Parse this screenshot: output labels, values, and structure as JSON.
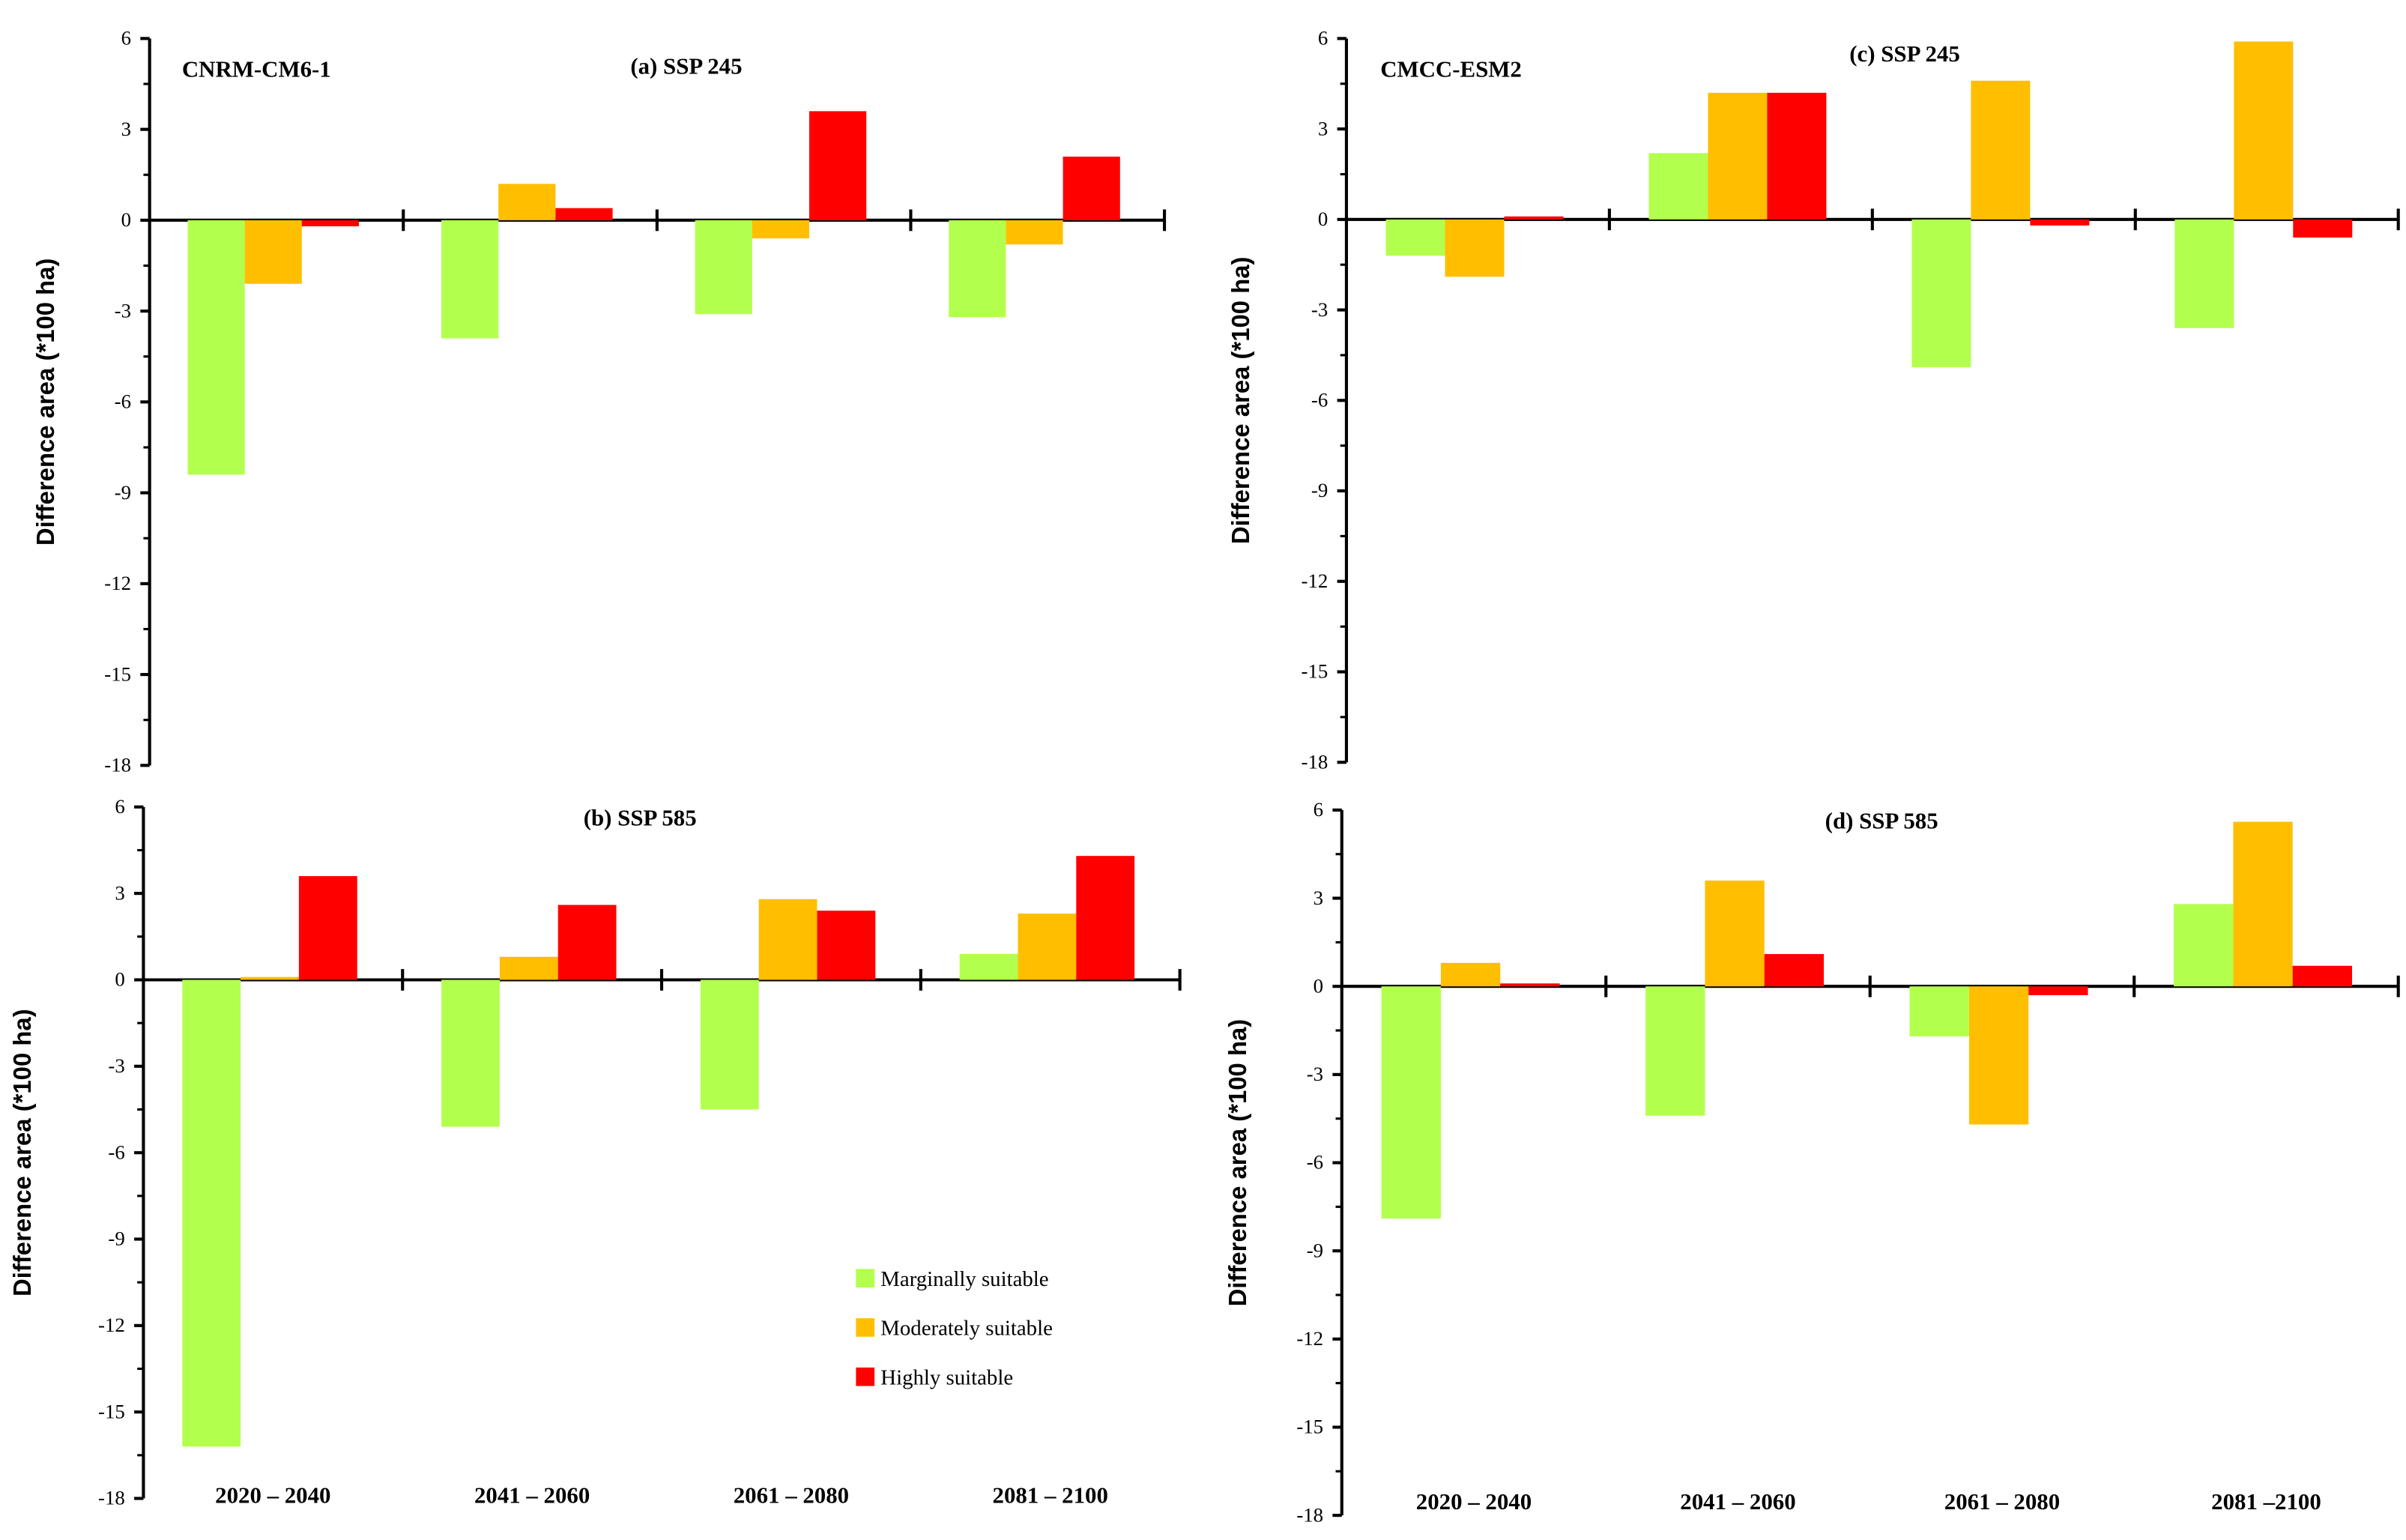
{
  "chart_data": [
    {
      "type": "bar",
      "model": "CNRM-CM6-1",
      "title": "(a)  SSP 245",
      "ylabel": "Difference area (*100 ha)",
      "ylim": [
        -18,
        6
      ],
      "yticks": [
        "6",
        "3",
        "0",
        "-3",
        "-6",
        "-9",
        "-12",
        "-15",
        "-18"
      ],
      "categories": [
        "2020 – 2040",
        "2041 – 2060",
        "2061 – 2080",
        "2081 – 2100"
      ],
      "show_categories": false,
      "series": [
        {
          "name": "Marginally suitable",
          "values": [
            -8.4,
            -3.9,
            -3.1,
            -3.2
          ]
        },
        {
          "name": "Moderately suitable",
          "values": [
            -2.1,
            1.2,
            -0.6,
            -0.8
          ]
        },
        {
          "name": "Highly suitable",
          "values": [
            -0.2,
            0.4,
            3.6,
            2.1
          ]
        }
      ]
    },
    {
      "type": "bar",
      "model": "",
      "title": "(b) SSP 585",
      "ylabel": "Difference area (*100 ha)",
      "ylim": [
        -18,
        6
      ],
      "yticks": [
        "6",
        "3",
        "0",
        "-3",
        "-6",
        "-9",
        "-12",
        "-15",
        "-18"
      ],
      "categories": [
        "2020 – 2040",
        "2041 – 2060",
        "2061 – 2080",
        "2081 – 2100"
      ],
      "show_categories": true,
      "series": [
        {
          "name": "Marginally suitable",
          "values": [
            -16.2,
            -5.1,
            -4.5,
            0.9
          ]
        },
        {
          "name": "Moderately suitable",
          "values": [
            0.1,
            0.8,
            2.8,
            2.3
          ]
        },
        {
          "name": "Highly suitable",
          "values": [
            3.6,
            2.6,
            2.4,
            4.3
          ]
        }
      ]
    },
    {
      "type": "bar",
      "model": "CMCC-ESM2",
      "title": "(c) SSP 245",
      "ylabel": "Difference area (*100 ha)",
      "ylim": [
        -18,
        6
      ],
      "yticks": [
        "6",
        "3",
        "0",
        "-3",
        "-6",
        "-9",
        "-12",
        "-15",
        "-18"
      ],
      "categories": [
        "2020 – 2040",
        "2041 – 2060",
        "2061 – 2080",
        "2081 – 2100"
      ],
      "show_categories": false,
      "series": [
        {
          "name": "Marginally suitable",
          "values": [
            -1.2,
            2.2,
            -4.9,
            -3.6
          ]
        },
        {
          "name": "Moderately suitable",
          "values": [
            -1.9,
            4.2,
            4.6,
            5.9
          ]
        },
        {
          "name": "Highly suitable",
          "values": [
            0.1,
            4.2,
            -0.2,
            -0.6
          ]
        }
      ]
    },
    {
      "type": "bar",
      "model": "",
      "title": "(d)  SSP 585",
      "ylabel": "Difference area (*100 ha)",
      "ylim": [
        -18,
        6
      ],
      "yticks": [
        "6",
        "3",
        "0",
        "-3",
        "-6",
        "-9",
        "-12",
        "-15",
        "-18"
      ],
      "categories": [
        "2020 – 2040",
        "2041 – 2060",
        "2061 – 2080",
        "2081 –2100"
      ],
      "show_categories": true,
      "series": [
        {
          "name": "Marginally suitable",
          "values": [
            -7.9,
            -4.4,
            -1.7,
            2.8
          ]
        },
        {
          "name": "Moderately suitable",
          "values": [
            0.8,
            3.6,
            -4.7,
            5.6
          ]
        },
        {
          "name": "Highly suitable",
          "values": [
            0.1,
            1.1,
            -0.3,
            0.7
          ]
        }
      ]
    }
  ],
  "legend": {
    "items": [
      "Marginally suitable",
      "Moderately suitable",
      "Highly suitable"
    ],
    "colors": [
      "#b3ff4d",
      "#ffbf00",
      "#ff0000"
    ]
  }
}
